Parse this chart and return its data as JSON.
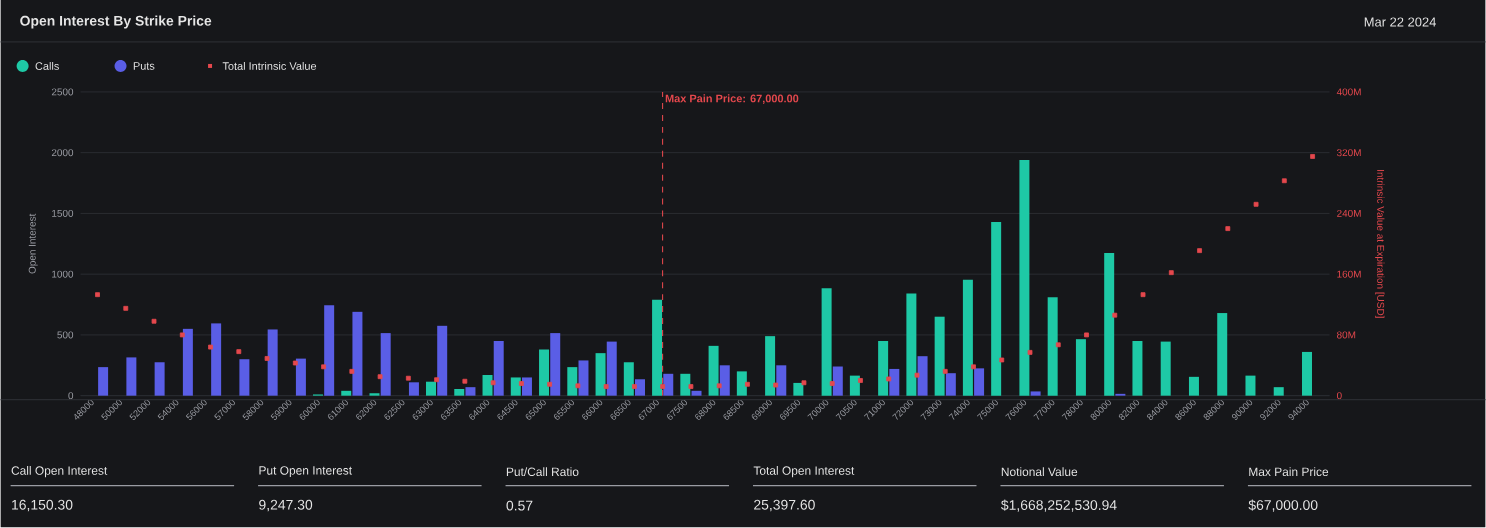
{
  "chart_data": {
    "type": "bar",
    "title": "Open Interest By Strike Price",
    "subtitle": "Mar 22 2024",
    "categories": [
      "48000",
      "50000",
      "52000",
      "54000",
      "56000",
      "57000",
      "58000",
      "59000",
      "60000",
      "61000",
      "62000",
      "62500",
      "63000",
      "63500",
      "64000",
      "64500",
      "65000",
      "65500",
      "66000",
      "66500",
      "67000",
      "67500",
      "68000",
      "68500",
      "69000",
      "69500",
      "70000",
      "70500",
      "71000",
      "72000",
      "73000",
      "74000",
      "75000",
      "76000",
      "77000",
      "78000",
      "80000",
      "82000",
      "84000",
      "86000",
      "88000",
      "90000",
      "92000",
      "94000"
    ],
    "series": [
      {
        "name": "Calls",
        "color": "#1ec9a6",
        "values": [
          0,
          0,
          0,
          0,
          0,
          0,
          0,
          0,
          10,
          40,
          20,
          0,
          115,
          55,
          170,
          150,
          380,
          235,
          350,
          275,
          790,
          180,
          410,
          200,
          490,
          105,
          885,
          165,
          450,
          840,
          650,
          955,
          1430,
          1940,
          810,
          465,
          1175,
          450,
          445,
          155,
          680,
          165,
          70,
          360
        ]
      },
      {
        "name": "Puts",
        "color": "#5a5ee6",
        "values": [
          235,
          315,
          275,
          550,
          595,
          300,
          545,
          305,
          745,
          690,
          515,
          110,
          575,
          70,
          450,
          150,
          515,
          290,
          445,
          135,
          180,
          40,
          250,
          0,
          250,
          0,
          240,
          0,
          220,
          325,
          185,
          225,
          0,
          35,
          0,
          0,
          15,
          0,
          0,
          0,
          0,
          0,
          0,
          0
        ]
      },
      {
        "name": "Total Intrinsic Value",
        "type": "scatter",
        "axis": "y2",
        "marker": "square",
        "color": "#e5484d",
        "values": [
          133,
          115,
          98,
          80,
          64,
          58,
          49,
          43,
          38,
          32,
          25,
          23,
          21,
          19,
          17,
          16,
          15,
          13,
          12,
          12,
          12,
          12,
          13,
          15,
          14,
          17,
          16,
          20,
          22,
          27,
          32,
          38,
          47,
          57,
          67,
          80,
          106,
          133,
          162,
          191,
          220,
          252,
          283,
          315
        ]
      }
    ],
    "ylabel": "Open Interest",
    "y2label": "Intrinsic Value at Expiration [USD]",
    "ylim": [
      0,
      2500
    ],
    "yticks": [
      0,
      500,
      1000,
      1500,
      2000,
      2500
    ],
    "y2lim": [
      0,
      400
    ],
    "y2ticks": [
      {
        "value": 0,
        "label": "0"
      },
      {
        "value": 80,
        "label": "80M"
      },
      {
        "value": 160,
        "label": "160M"
      },
      {
        "value": 240,
        "label": "240M"
      },
      {
        "value": 320,
        "label": "320M"
      },
      {
        "value": 400,
        "label": "400M"
      }
    ],
    "grid": "y",
    "legend": "top left",
    "ref_lines": [
      {
        "axis": "x",
        "value": "67000",
        "label": "Max Pain Price: 67,000.00",
        "color": "#e5484d",
        "line_style": "dashed"
      }
    ],
    "annotations": [
      "Call Open Interest",
      "16,150.30",
      "Put Open Interest",
      "9,247.30",
      "Put/Call Ratio",
      "0.57",
      "Total Open Interest",
      "25,397.60",
      "Notional Value",
      "$1,668,252,530.94",
      "Max Pain Price",
      "$67,000.00"
    ]
  }
}
